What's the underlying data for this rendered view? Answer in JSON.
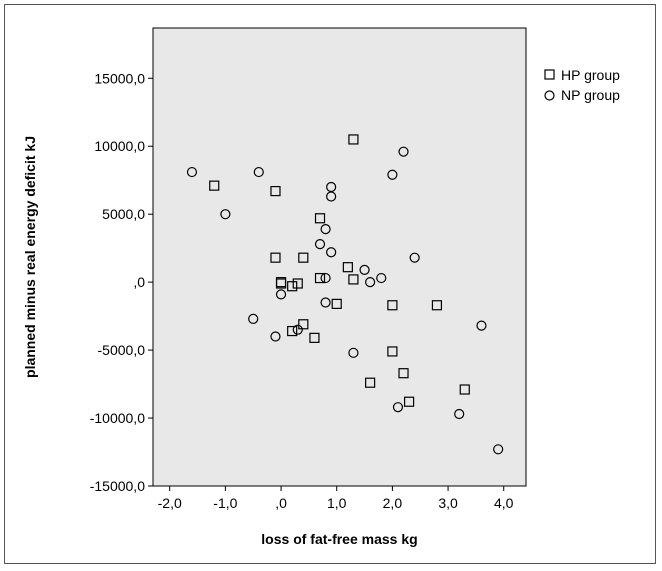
{
  "chart_data": {
    "type": "scatter",
    "title": "",
    "xlabel": "loss of fat-free mass kg",
    "ylabel": "planned minus real energy deficit kJ",
    "xlim": [
      -2.3,
      4.4
    ],
    "ylim": [
      -15000,
      18700
    ],
    "x_ticks": [
      -2.0,
      -1.0,
      0.0,
      1.0,
      2.0,
      3.0,
      4.0
    ],
    "x_tick_labels": [
      "-2,0",
      "-1,0",
      ",0",
      "1,0",
      "2,0",
      "3,0",
      "4,0"
    ],
    "y_ticks": [
      -15000,
      -10000,
      -5000,
      0,
      5000,
      10000,
      15000
    ],
    "y_tick_labels": [
      "-15000,0",
      "-10000,0",
      "-5000,0",
      ",0",
      "5000,0",
      "10000,0",
      "15000,0"
    ],
    "grid": false,
    "plot_background": "#e8e8e8",
    "legend_position": "right-top",
    "series": [
      {
        "name": "HP group",
        "marker": "square",
        "points": [
          [
            -1.2,
            7100
          ],
          [
            -0.1,
            6700
          ],
          [
            1.3,
            10500
          ],
          [
            0.7,
            4700
          ],
          [
            -0.1,
            1800
          ],
          [
            0.4,
            1800
          ],
          [
            0.0,
            0
          ],
          [
            0.0,
            -100
          ],
          [
            0.2,
            -300
          ],
          [
            0.3,
            -100
          ],
          [
            0.7,
            300
          ],
          [
            1.2,
            1100
          ],
          [
            1.3,
            200
          ],
          [
            1.0,
            -1600
          ],
          [
            0.4,
            -3100
          ],
          [
            0.2,
            -3600
          ],
          [
            0.6,
            -4100
          ],
          [
            2.0,
            -1700
          ],
          [
            2.8,
            -1700
          ],
          [
            2.0,
            -5100
          ],
          [
            2.2,
            -6700
          ],
          [
            1.6,
            -7400
          ],
          [
            3.3,
            -7900
          ],
          [
            2.3,
            -8800
          ]
        ]
      },
      {
        "name": "NP group",
        "marker": "circle",
        "points": [
          [
            -1.6,
            8100
          ],
          [
            -0.4,
            8100
          ],
          [
            -1.0,
            5000
          ],
          [
            0.9,
            7000
          ],
          [
            0.9,
            6300
          ],
          [
            2.0,
            7900
          ],
          [
            2.2,
            9600
          ],
          [
            0.8,
            3900
          ],
          [
            0.7,
            2800
          ],
          [
            0.9,
            2200
          ],
          [
            0.8,
            300
          ],
          [
            1.5,
            900
          ],
          [
            1.6,
            0
          ],
          [
            1.8,
            300
          ],
          [
            2.4,
            1800
          ],
          [
            0.0,
            -900
          ],
          [
            0.8,
            -1500
          ],
          [
            -0.5,
            -2700
          ],
          [
            -0.1,
            -4000
          ],
          [
            0.3,
            -3500
          ],
          [
            1.3,
            -5200
          ],
          [
            3.6,
            -3200
          ],
          [
            2.1,
            -9200
          ],
          [
            3.2,
            -9700
          ],
          [
            3.9,
            -12300
          ]
        ]
      }
    ]
  }
}
